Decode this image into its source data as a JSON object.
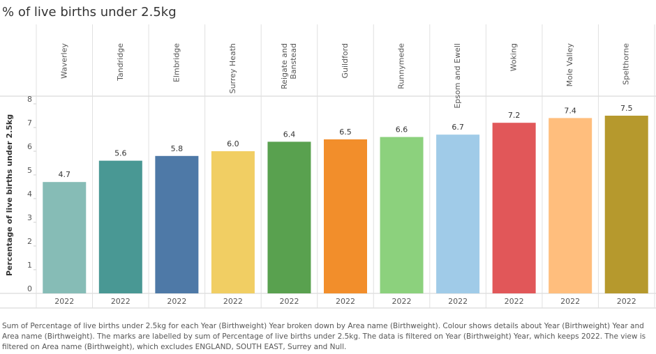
{
  "chart_data": {
    "type": "bar",
    "title": "% of live births under 2.5kg",
    "y_label": "Percentage of live births under 2.5kg",
    "categories": [
      "Waverley",
      "Tandridge",
      "Elmbridge",
      "Surrey Heath",
      "Reigate and Banstead",
      "Guildford",
      "Runnymede",
      "Epsom and Ewell",
      "Woking",
      "Mole Valley",
      "Spelthorne"
    ],
    "year": "2022",
    "values": [
      4.7,
      5.6,
      5.8,
      6.0,
      6.4,
      6.5,
      6.6,
      6.7,
      7.2,
      7.4,
      7.5
    ],
    "value_labels": [
      "4.7",
      "5.6",
      "5.8",
      "6.0",
      "6.4",
      "6.5",
      "6.6",
      "6.7",
      "7.2",
      "7.4",
      "7.5"
    ],
    "colors": [
      "#86bcb6",
      "#499894",
      "#4e79a7",
      "#f1ce63",
      "#59a14f",
      "#f28e2b",
      "#8cd17d",
      "#a0cbe8",
      "#e15759",
      "#ffbe7d",
      "#b6992d"
    ],
    "ylim": [
      0,
      8
    ],
    "yticks": [
      0,
      1,
      2,
      3,
      4,
      5,
      6,
      7,
      8
    ],
    "caption": "Sum of Percentage of live births under 2.5kg for each Year (Birthweight) Year broken down by Area name (Birthweight).  Colour shows details about Year (Birthweight) Year and Area name (Birthweight).  The marks are labelled by sum of Percentage of live births under 2.5kg. The data is filtered on Year (Birthweight) Year, which keeps 2022. The view is filtered on Area name (Birthweight), which excludes ENGLAND, SOUTH EAST, Surrey and Null."
  }
}
